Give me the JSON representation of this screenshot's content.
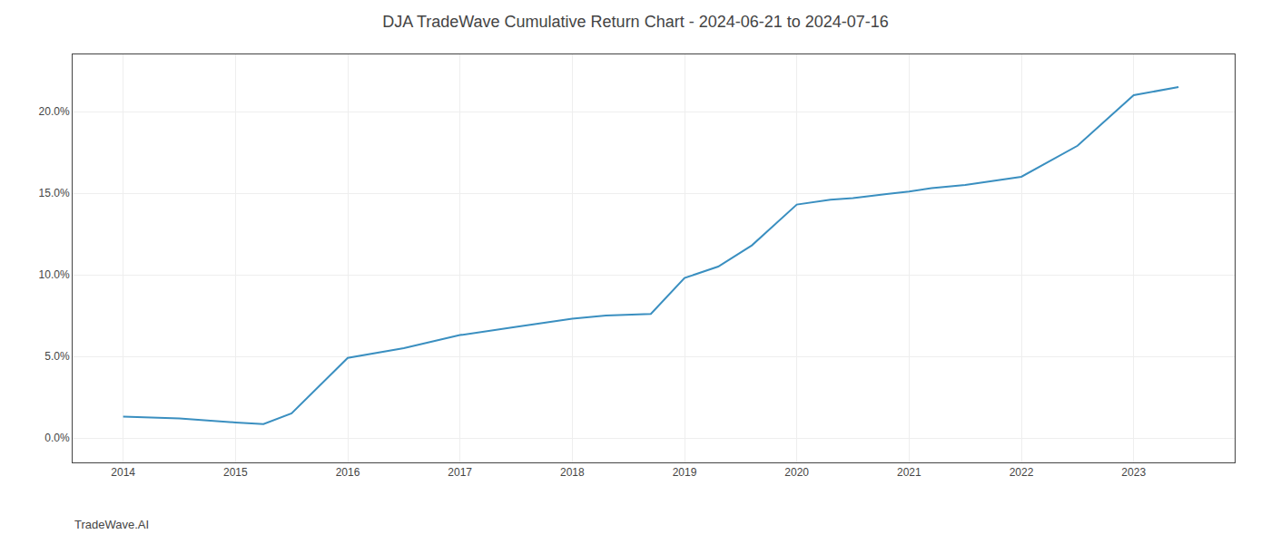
{
  "chart_data": {
    "type": "line",
    "title": "DJA TradeWave Cumulative Return Chart - 2024-06-21 to 2024-07-16",
    "annotations": [
      "TradeWave.AI"
    ],
    "x": [
      2014.0,
      2014.5,
      2015.0,
      2015.25,
      2015.5,
      2016.0,
      2016.5,
      2017.0,
      2017.5,
      2018.0,
      2018.3,
      2018.7,
      2019.0,
      2019.3,
      2019.6,
      2020.0,
      2020.3,
      2020.5,
      2020.8,
      2021.0,
      2021.2,
      2021.5,
      2022.0,
      2022.5,
      2023.0,
      2023.4
    ],
    "values": [
      1.3,
      1.2,
      0.95,
      0.85,
      1.5,
      4.9,
      5.5,
      6.3,
      6.8,
      7.3,
      7.5,
      7.6,
      9.8,
      10.5,
      11.8,
      14.3,
      14.6,
      14.7,
      14.95,
      15.1,
      15.3,
      15.5,
      16.0,
      17.9,
      21.0,
      21.5
    ],
    "color": "#3a8fc0",
    "xlim": [
      2013.55,
      2023.9
    ],
    "xticks": [
      2014,
      2015,
      2016,
      2017,
      2018,
      2019,
      2020,
      2021,
      2022,
      2023
    ],
    "ylim": [
      -1.5,
      23.5
    ],
    "yticks": [
      {
        "value": 0.0,
        "label": "0.0%"
      },
      {
        "value": 5.0,
        "label": "5.0%"
      },
      {
        "value": 10.0,
        "label": "10.0%"
      },
      {
        "value": 15.0,
        "label": "15.0%"
      },
      {
        "value": 20.0,
        "label": "20.0%"
      }
    ],
    "grid": true
  }
}
